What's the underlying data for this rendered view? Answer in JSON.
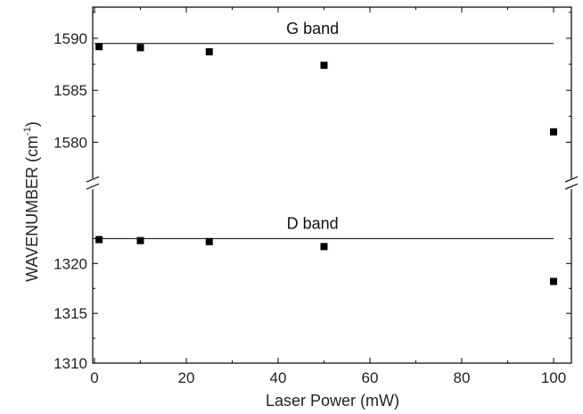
{
  "chart_data": {
    "type": "scatter",
    "xlabel": "Laser Power (mW)",
    "ylabel_main": "WAVENUMBER (cm",
    "ylabel_sup": "-1",
    "ylabel_close": ")",
    "xlim": [
      0,
      110
    ],
    "x_ticks": [
      0,
      20,
      40,
      60,
      80,
      100
    ],
    "x_tick_labels": [
      "0",
      "20",
      "40",
      "60",
      "80",
      "100"
    ],
    "y_axis_break": true,
    "panels": {
      "upper": {
        "ylim": [
          1576,
          1593
        ],
        "y_ticks": [
          1580,
          1585,
          1590
        ],
        "y_tick_labels": [
          "1580",
          "1585",
          "1590"
        ],
        "band_label": "G band",
        "reference_line": 1589.5,
        "points": [
          {
            "x": 1,
            "y": 1589.2
          },
          {
            "x": 10,
            "y": 1589.1
          },
          {
            "x": 25,
            "y": 1588.7
          },
          {
            "x": 50,
            "y": 1587.4
          },
          {
            "x": 100,
            "y": 1581.0
          }
        ]
      },
      "lower": {
        "ylim": [
          1310,
          1328
        ],
        "y_ticks": [
          1310,
          1315,
          1320
        ],
        "y_tick_labels": [
          "1310",
          "1315",
          "1320"
        ],
        "band_label": "D band",
        "reference_line": 1322.5,
        "points": [
          {
            "x": 1,
            "y": 1322.4
          },
          {
            "x": 10,
            "y": 1322.3
          },
          {
            "x": 25,
            "y": 1322.2
          },
          {
            "x": 50,
            "y": 1321.7
          },
          {
            "x": 100,
            "y": 1318.2
          }
        ]
      }
    },
    "grid": false,
    "marker": "square",
    "marker_color": "#000000"
  }
}
